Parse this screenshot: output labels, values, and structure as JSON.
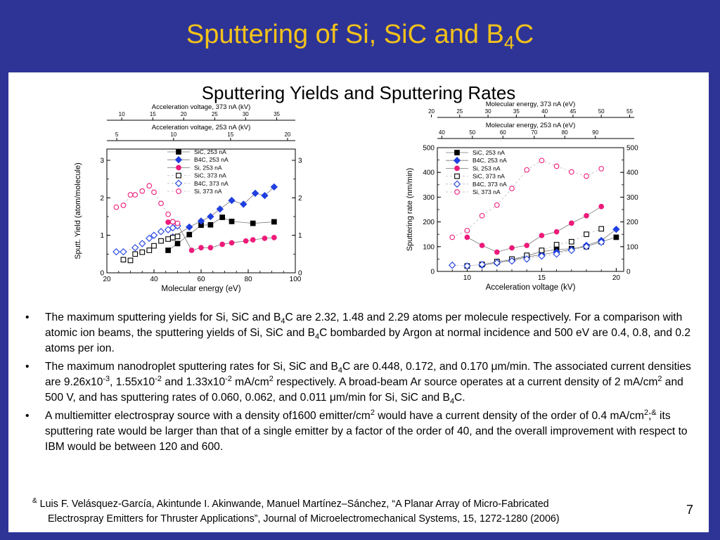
{
  "slide": {
    "title_main": "Sputtering of Si, SiC and B",
    "title_sub": "4",
    "title_tail": "C",
    "subtitle": "Sputtering Yields and Sputtering Rates",
    "page_number": "7",
    "colors": {
      "background": "#2e3496",
      "title": "#f2c21a",
      "sic": "#000000",
      "b4c": "#1f3fe0",
      "si": "#ee1a7a"
    }
  },
  "bullets": [
    {
      "parts": [
        "The maximum sputtering yields for Si, SiC and B",
        "4",
        "C are 2.32, 1.48 and 2.29 atoms per molecule respectively. For a comparison with atomic ion beams, the sputtering yields of Si, SiC and B",
        "4",
        "C bombarded by Argon at normal incidence and 500 eV are 0.4, 0.8, and 0.2 atoms per ion."
      ]
    },
    {
      "parts": [
        "The maximum nanodroplet sputtering rates for Si, SiC and B",
        "4",
        "C are 0.448, 0.172, and 0.170 ",
        "μ",
        "m/min. The associated current densities are 9.26x10",
        "-3",
        ", 1.55x10",
        "-2",
        " and 1.33x10",
        "-2",
        " mA/cm",
        "2",
        " respectively.  A broad-beam Ar source operates at a current density of 2 mA/cm",
        "2",
        " and 500 V, and has sputtering rates of 0.060, 0.062, and 0.011 ",
        "μ",
        "m/min for Si, SiC and B",
        "4",
        "C."
      ]
    },
    {
      "parts": [
        "A multiemitter electrospray source with a density of1600 emitter/cm",
        "2",
        " would  have a current density of the order of 0.4 mA/cm",
        "2",
        ";",
        "&",
        " its sputtering rate would be larger than that of a single emitter by a factor of the order of 40, and the overall improvement with respect to IBM would be between 120 and 600."
      ]
    }
  ],
  "footnote": {
    "mark": "&",
    "line1": " Luis F. Velásquez-García, Akintunde I. Akinwande, Manuel Martínez–Sánchez, “A Planar Array of Micro-Fabricated",
    "line2": "Electrospray Emitters for Thruster Applications”, Journal of Microelectromechanical Systems, 15, 1272-1280 (2006)"
  },
  "chart_data": [
    {
      "type": "scatter",
      "title": "",
      "xlabel": "Molecular energy (eV)",
      "ylabel": "Sputt. Yield (atom/molecule)",
      "xlim": [
        20,
        100
      ],
      "ylim": [
        0,
        3.3
      ],
      "xticks": [
        "20",
        "40",
        "60",
        "80",
        "100"
      ],
      "yticks": [
        "0",
        "1",
        "2",
        "3"
      ],
      "yticks_right": [
        "0",
        "1",
        "2",
        "3"
      ],
      "top_axes": [
        {
          "label": "Acceleration voltage, 373 nA (kV)",
          "ticks": [
            "10",
            "15",
            "20",
            "25",
            "30",
            "35"
          ],
          "tick_positions_molecular_energy": [
            26.3,
            39.5,
            52.6,
            65.8,
            78.9,
            92.1
          ]
        },
        {
          "label": "Acceleration voltage, 253 nA (kV)",
          "ticks": [
            "5",
            "10",
            "15",
            "20"
          ],
          "tick_positions_molecular_energy": [
            24.2,
            48.3,
            72.5,
            96.7
          ]
        }
      ],
      "legend_placement": "top-center",
      "series": [
        {
          "name": "SiC, 253 nA",
          "marker": "square-filled",
          "color": "#000000",
          "line": "solid",
          "points": [
            [
              46,
              0.6
            ],
            [
              50,
              0.78
            ],
            [
              55,
              1.02
            ],
            [
              60,
              1.27
            ],
            [
              64,
              1.28
            ],
            [
              69,
              1.48
            ],
            [
              73,
              1.37
            ],
            [
              82,
              1.32
            ],
            [
              91,
              1.36
            ]
          ]
        },
        {
          "name": "B4C, 253 nA",
          "marker": "diamond-filled",
          "color": "#1f3fe0",
          "line": "solid",
          "points": [
            [
              48,
              0.95
            ],
            [
              55,
              1.22
            ],
            [
              60,
              1.38
            ],
            [
              64,
              1.5
            ],
            [
              68,
              1.7
            ],
            [
              73,
              1.93
            ],
            [
              78,
              1.83
            ],
            [
              83,
              2.12
            ],
            [
              87,
              2.06
            ],
            [
              91,
              2.29
            ]
          ]
        },
        {
          "name": "Si, 253 nA",
          "marker": "circle-filled",
          "color": "#ee1a7a",
          "line": "solid",
          "points": [
            [
              46,
              1.35
            ],
            [
              48,
              1.36
            ],
            [
              50,
              1.3
            ],
            [
              56,
              0.6
            ],
            [
              60,
              0.67
            ],
            [
              64,
              0.67
            ],
            [
              69,
              0.76
            ],
            [
              73,
              0.8
            ],
            [
              79,
              0.85
            ],
            [
              82,
              0.88
            ],
            [
              87,
              0.92
            ],
            [
              91,
              0.94
            ]
          ]
        },
        {
          "name": "SiC, 373 nA",
          "marker": "square-open",
          "color": "#000000",
          "line": "dashed",
          "points": [
            [
              27,
              0.35
            ],
            [
              30,
              0.33
            ],
            [
              32,
              0.5
            ],
            [
              35,
              0.55
            ],
            [
              38,
              0.6
            ],
            [
              40,
              0.72
            ],
            [
              43,
              0.85
            ],
            [
              46,
              0.9
            ],
            [
              48,
              0.94
            ],
            [
              50,
              0.97
            ]
          ]
        },
        {
          "name": "B4C, 373 nA",
          "marker": "diamond-open",
          "color": "#1f3fe0",
          "line": "dashed",
          "points": [
            [
              24,
              0.56
            ],
            [
              27,
              0.56
            ],
            [
              32,
              0.67
            ],
            [
              35,
              0.78
            ],
            [
              38,
              0.92
            ],
            [
              40,
              1.0
            ],
            [
              43,
              1.1
            ],
            [
              46,
              1.15
            ],
            [
              48,
              1.2
            ],
            [
              50,
              1.25
            ]
          ]
        },
        {
          "name": "Si, 373 nA",
          "marker": "circle-open",
          "color": "#ee1a7a",
          "line": "dashed",
          "points": [
            [
              24,
              1.75
            ],
            [
              27,
              1.8
            ],
            [
              30,
              2.08
            ],
            [
              32,
              2.08
            ],
            [
              35,
              2.18
            ],
            [
              38,
              2.32
            ],
            [
              40,
              2.15
            ],
            [
              43,
              1.85
            ],
            [
              46,
              1.56
            ],
            [
              48,
              1.36
            ],
            [
              50,
              1.32
            ]
          ]
        }
      ]
    },
    {
      "type": "scatter",
      "title": "",
      "xlabel": "Acceleration voltage (kV)",
      "ylabel": "Sputtering rate (nm/min)",
      "xlim": [
        8,
        20.5
      ],
      "ylim": [
        0,
        500
      ],
      "xticks": [
        "10",
        "15",
        "20"
      ],
      "yticks": [
        "0",
        "100",
        "200",
        "300",
        "400",
        "500"
      ],
      "yticks_right": [
        "0",
        "100",
        "200",
        "300",
        "400",
        "500"
      ],
      "top_axes": [
        {
          "label": "Molecular energy, 373 nA (eV)",
          "ticks": [
            "20",
            "25",
            "30",
            "35",
            "40",
            "45",
            "50",
            "55"
          ],
          "tick_positions_kv": [
            7.6,
            9.5,
            11.4,
            13.3,
            15.2,
            17.1,
            19.0,
            20.9
          ]
        },
        {
          "label": "Molecular energy, 253 nA (eV)",
          "ticks": [
            "40",
            "50",
            "60",
            "70",
            "80",
            "90"
          ],
          "tick_positions_kv": [
            8.3,
            10.35,
            12.4,
            14.5,
            16.55,
            18.6
          ]
        }
      ],
      "legend_placement": "top-left",
      "series": [
        {
          "name": "SiC, 253 nA",
          "marker": "square-filled",
          "color": "#000000",
          "line": "solid",
          "points": [
            [
              11,
              28
            ],
            [
              12,
              38
            ],
            [
              13,
              48
            ],
            [
              14,
              62
            ],
            [
              15,
              80
            ],
            [
              16,
              88
            ],
            [
              17,
              92
            ],
            [
              18,
              100
            ],
            [
              19,
              120
            ],
            [
              20,
              138
            ]
          ]
        },
        {
          "name": "B4C, 253 nA",
          "marker": "diamond-filled",
          "color": "#1f3fe0",
          "line": "solid",
          "points": [
            [
              11,
              25
            ],
            [
              12,
              34
            ],
            [
              13,
              45
            ],
            [
              14,
              58
            ],
            [
              15,
              68
            ],
            [
              16,
              78
            ],
            [
              17,
              88
            ],
            [
              18,
              105
            ],
            [
              19,
              125
            ],
            [
              20,
              170
            ]
          ]
        },
        {
          "name": "Si, 253 nA",
          "marker": "circle-filled",
          "color": "#ee1a7a",
          "line": "solid",
          "points": [
            [
              10,
              138
            ],
            [
              11,
              105
            ],
            [
              12,
              78
            ],
            [
              13,
              95
            ],
            [
              14,
              105
            ],
            [
              15,
              145
            ],
            [
              16,
              160
            ],
            [
              17,
              195
            ],
            [
              18,
              225
            ],
            [
              19,
              262
            ]
          ]
        },
        {
          "name": "SiC, 373 nA",
          "marker": "square-open",
          "color": "#000000",
          "line": "dashed",
          "points": [
            [
              10,
              22
            ],
            [
              11,
              28
            ],
            [
              12,
              40
            ],
            [
              13,
              50
            ],
            [
              14,
              65
            ],
            [
              15,
              85
            ],
            [
              16,
              108
            ],
            [
              17,
              120
            ],
            [
              18,
              150
            ],
            [
              19,
              172
            ]
          ]
        },
        {
          "name": "B4C, 373 nA",
          "marker": "diamond-open",
          "color": "#1f3fe0",
          "line": "dashed",
          "points": [
            [
              9,
              25
            ],
            [
              10,
              22
            ],
            [
              11,
              28
            ],
            [
              12,
              35
            ],
            [
              13,
              42
            ],
            [
              14,
              50
            ],
            [
              15,
              62
            ],
            [
              16,
              70
            ],
            [
              17,
              85
            ],
            [
              18,
              100
            ],
            [
              19,
              118
            ]
          ]
        },
        {
          "name": "Si, 373 nA",
          "marker": "circle-open",
          "color": "#ee1a7a",
          "line": "dashed",
          "points": [
            [
              9,
              138
            ],
            [
              10,
              165
            ],
            [
              11,
              225
            ],
            [
              12,
              268
            ],
            [
              13,
              335
            ],
            [
              14,
              410
            ],
            [
              15,
              448
            ],
            [
              16,
              425
            ],
            [
              17,
              402
            ],
            [
              18,
              385
            ],
            [
              19,
              415
            ]
          ]
        }
      ]
    }
  ]
}
